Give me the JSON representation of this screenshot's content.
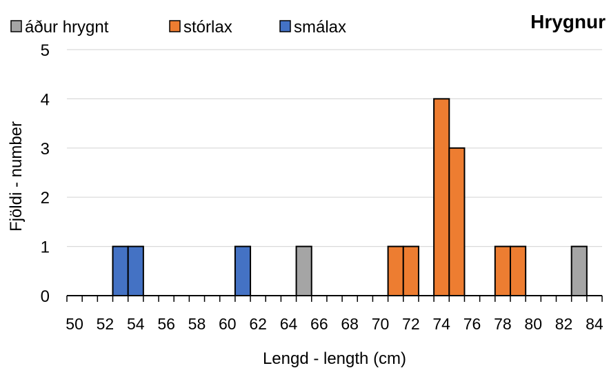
{
  "chart_data": {
    "type": "bar",
    "title": "Hrygnur",
    "xlabel": "Lengd - length (cm)",
    "ylabel": "Fjöldi - number",
    "xlim": [
      49.5,
      84.5
    ],
    "ylim": [
      0,
      5
    ],
    "x_ticks": [
      50,
      52,
      54,
      56,
      58,
      60,
      62,
      64,
      66,
      68,
      70,
      72,
      74,
      76,
      78,
      80,
      82,
      84
    ],
    "y_ticks": [
      0,
      1,
      2,
      3,
      4,
      5
    ],
    "grid": "horizontal",
    "legend_position": "top-left",
    "series": [
      {
        "name": "áður hrygnt",
        "color": "#a5a5a5",
        "x": [
          65,
          83
        ],
        "values": [
          1,
          1
        ]
      },
      {
        "name": "stórlax",
        "color": "#ed7d31",
        "x": [
          71,
          72,
          74,
          75,
          78,
          79
        ],
        "values": [
          1,
          1,
          4,
          3,
          1,
          1
        ]
      },
      {
        "name": "smálax",
        "color": "#4472c4",
        "x": [
          53,
          54,
          61
        ],
        "values": [
          1,
          1,
          1
        ]
      }
    ]
  }
}
